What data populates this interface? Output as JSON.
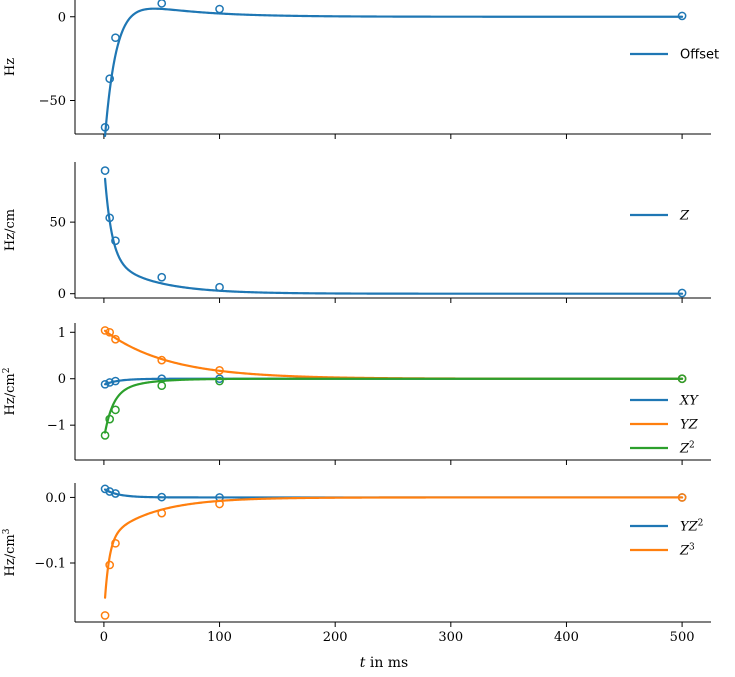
{
  "chart_data": [
    {
      "type": "line",
      "ylabel": "Hz",
      "ylabel_sup": "",
      "ylim": [
        -70,
        10
      ],
      "yticks": [
        0,
        -50
      ],
      "yticklabels": [
        "0",
        "−50"
      ],
      "legend": "right",
      "series": [
        {
          "name": "Offset",
          "math": false,
          "color": "#1f77b4",
          "model": {
            "kind": "offset",
            "A": 94.2,
            "tau1": 10,
            "B": 14.4,
            "tau2": 50,
            "C": 0
          },
          "points": [
            [
              1,
              -66
            ],
            [
              5,
              -37
            ],
            [
              10,
              -12.5
            ],
            [
              50,
              8
            ],
            [
              100,
              4.6
            ],
            [
              500,
              0.5
            ]
          ]
        }
      ]
    },
    {
      "type": "line",
      "ylabel": "Hz/cm",
      "ylabel_sup": "",
      "ylim": [
        -3,
        92
      ],
      "yticks": [
        50,
        0
      ],
      "yticklabels": [
        "50",
        "0"
      ],
      "legend": "right",
      "series": [
        {
          "name": "Z",
          "math": true,
          "color": "#1f77b4",
          "model": {
            "kind": "biexp",
            "A1": 66,
            "t1": 6,
            "A2": 25,
            "t2": 40,
            "C": 0
          },
          "points": [
            [
              1,
              86
            ],
            [
              5,
              53
            ],
            [
              10,
              37
            ],
            [
              50,
              11.5
            ],
            [
              100,
              4.5
            ],
            [
              500,
              0.5
            ]
          ]
        }
      ]
    },
    {
      "type": "line",
      "ylabel": "Hz/cm",
      "ylabel_sup": "2",
      "ylim": [
        -1.75,
        1.2
      ],
      "yticks": [
        1,
        0,
        -1
      ],
      "yticklabels": [
        "1",
        "0",
        "−1"
      ],
      "legend": "lower right",
      "series": [
        {
          "name": "XY",
          "math": true,
          "color": "#1f77b4",
          "model": {
            "kind": "exp",
            "A": -0.13,
            "t": 12,
            "C": 0
          },
          "points": [
            [
              1,
              -0.12
            ],
            [
              5,
              -0.08
            ],
            [
              10,
              -0.05
            ],
            [
              50,
              0.0
            ],
            [
              100,
              0.0
            ],
            [
              500,
              0.0
            ]
          ]
        },
        {
          "name": "YZ",
          "math": true,
          "color": "#ff7f0e",
          "model": {
            "kind": "exp",
            "A": 1.05,
            "t": 55,
            "C": 0
          },
          "points": [
            [
              1,
              1.04
            ],
            [
              5,
              1.0
            ],
            [
              10,
              0.85
            ],
            [
              50,
              0.4
            ],
            [
              100,
              0.18
            ],
            [
              500,
              0.0
            ]
          ]
        },
        {
          "name": "Z",
          "sup": "2",
          "math": true,
          "color": "#2ca02c",
          "model": {
            "kind": "biexp",
            "A1": -0.95,
            "t1": 7,
            "A2": -0.35,
            "t2": 25,
            "C": 0
          },
          "points": [
            [
              1,
              -1.22
            ],
            [
              5,
              -0.87
            ],
            [
              10,
              -0.67
            ],
            [
              50,
              -0.15
            ],
            [
              100,
              -0.05
            ],
            [
              500,
              0.0
            ]
          ]
        }
      ]
    },
    {
      "type": "line",
      "ylabel": "Hz/cm",
      "ylabel_sup": "3",
      "ylim": [
        -0.19,
        0.022
      ],
      "yticks": [
        0.0,
        -0.1
      ],
      "yticklabels": [
        "0.0",
        "−0.1"
      ],
      "legend": "right",
      "series": [
        {
          "name": "YZ",
          "sup": "2",
          "math": true,
          "color": "#1f77b4",
          "model": {
            "kind": "exp",
            "A": 0.013,
            "t": 12,
            "C": 0
          },
          "points": [
            [
              1,
              0.013
            ],
            [
              5,
              0.009
            ],
            [
              10,
              0.006
            ],
            [
              50,
              0.0005
            ],
            [
              100,
              0.0
            ],
            [
              500,
              0.0
            ]
          ]
        },
        {
          "name": "Z",
          "sup": "3",
          "math": true,
          "color": "#ff7f0e",
          "model": {
            "kind": "biexp",
            "A1": -0.115,
            "t1": 4,
            "A2": -0.065,
            "t2": 40,
            "C": 0
          },
          "points": [
            [
              1,
              -0.18
            ],
            [
              5,
              -0.103
            ],
            [
              10,
              -0.07
            ],
            [
              50,
              -0.024
            ],
            [
              100,
              -0.01
            ],
            [
              500,
              0.0
            ]
          ]
        }
      ]
    }
  ],
  "shared_x": {
    "xlim": [
      -25,
      525
    ],
    "xticks": [
      0,
      100,
      200,
      300,
      400,
      500
    ],
    "xticklabels": [
      "0",
      "100",
      "200",
      "300",
      "400",
      "500"
    ],
    "xlabel_var": "t",
    "xlabel_rest": " in ms"
  }
}
